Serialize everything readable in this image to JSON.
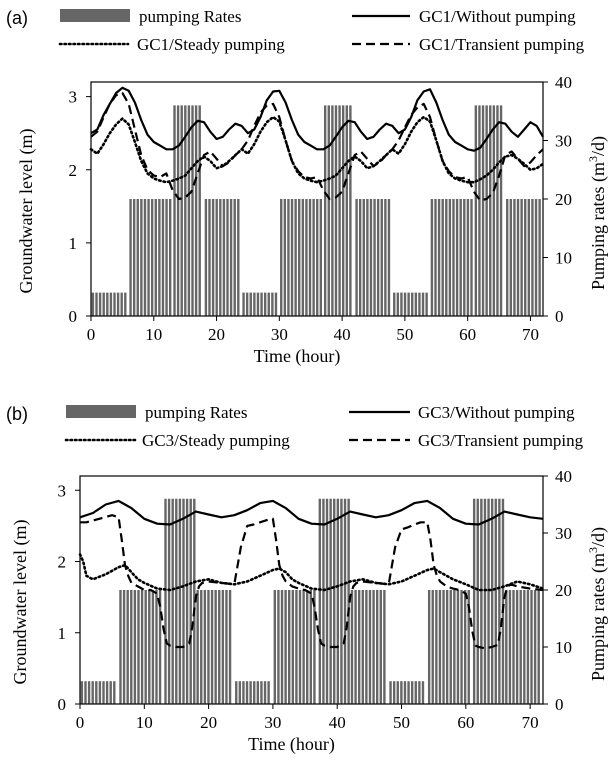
{
  "chart_data": [
    {
      "panel_label": "(a)",
      "type": "bar+line",
      "xlabel": "Time (hour)",
      "ylabel": "Groundwater level (m)",
      "y2label": "Pumping rates (m³/d)",
      "y2label_parts": [
        "Pumping rates (m",
        "3",
        "/d)"
      ],
      "xlim": [
        0,
        72
      ],
      "ylim": [
        0,
        3.2
      ],
      "y2lim": [
        0,
        40
      ],
      "xticks": [
        0,
        10,
        20,
        30,
        40,
        50,
        60,
        70
      ],
      "yticks": [
        0,
        1,
        2,
        3
      ],
      "y2ticks": [
        0,
        10,
        20,
        30,
        40
      ],
      "legend": [
        "pumping Rates",
        "GC1/Without pumping",
        "GC1/Steady pumping",
        "GC1/Transient pumping"
      ],
      "bars": {
        "name": "pumping Rates",
        "segments": [
          {
            "x0": 0,
            "x1": 6,
            "value": 4
          },
          {
            "x0": 6,
            "x1": 13,
            "value": 20
          },
          {
            "x0": 13,
            "x1": 18,
            "value": 36
          },
          {
            "x0": 18,
            "x1": 24,
            "value": 20
          },
          {
            "x0": 24,
            "x1": 30,
            "value": 4
          },
          {
            "x0": 30,
            "x1": 37,
            "value": 20
          },
          {
            "x0": 37,
            "x1": 42,
            "value": 36
          },
          {
            "x0": 42,
            "x1": 48,
            "value": 20
          },
          {
            "x0": 48,
            "x1": 54,
            "value": 4
          },
          {
            "x0": 54,
            "x1": 61,
            "value": 20
          },
          {
            "x0": 61,
            "x1": 66,
            "value": 36
          },
          {
            "x0": 66,
            "x1": 72,
            "value": 20
          }
        ]
      },
      "series": [
        {
          "name": "GC1/Without pumping",
          "style": "solid",
          "x": [
            0,
            1,
            2,
            3,
            4,
            5,
            6,
            7,
            8,
            9,
            10,
            11,
            12,
            13,
            14,
            15,
            16,
            17,
            18,
            19,
            20,
            21,
            22,
            23,
            24,
            25,
            26,
            27,
            28,
            29,
            30,
            31,
            32,
            33,
            34,
            35,
            36,
            37,
            38,
            39,
            40,
            41,
            42,
            43,
            44,
            45,
            46,
            47,
            48,
            49,
            50,
            51,
            52,
            53,
            54,
            55,
            56,
            57,
            58,
            59,
            60,
            61,
            62,
            63,
            64,
            65,
            66,
            67,
            68,
            69,
            70,
            71,
            72
          ],
          "y": [
            2.5,
            2.55,
            2.75,
            2.9,
            3.05,
            3.12,
            3.08,
            2.92,
            2.68,
            2.48,
            2.38,
            2.33,
            2.28,
            2.28,
            2.33,
            2.45,
            2.58,
            2.67,
            2.65,
            2.52,
            2.42,
            2.45,
            2.55,
            2.63,
            2.6,
            2.5,
            2.55,
            2.72,
            2.95,
            3.07,
            3.08,
            2.92,
            2.68,
            2.48,
            2.38,
            2.33,
            2.28,
            2.28,
            2.33,
            2.45,
            2.58,
            2.67,
            2.65,
            2.52,
            2.42,
            2.45,
            2.55,
            2.63,
            2.6,
            2.5,
            2.55,
            2.72,
            2.95,
            3.07,
            3.1,
            2.92,
            2.68,
            2.48,
            2.38,
            2.33,
            2.28,
            2.26,
            2.3,
            2.42,
            2.55,
            2.65,
            2.63,
            2.52,
            2.45,
            2.55,
            2.65,
            2.6,
            2.45
          ]
        },
        {
          "name": "GC1/Steady pumping",
          "style": "dotted",
          "x": [
            0,
            1,
            2,
            3,
            4,
            5,
            6,
            7,
            8,
            9,
            10,
            11,
            12,
            13,
            14,
            15,
            16,
            17,
            18,
            19,
            20,
            21,
            22,
            23,
            24,
            25,
            26,
            27,
            28,
            29,
            30,
            31,
            32,
            33,
            34,
            35,
            36,
            37,
            38,
            39,
            40,
            41,
            42,
            43,
            44,
            45,
            46,
            47,
            48,
            49,
            50,
            51,
            52,
            53,
            54,
            55,
            56,
            57,
            58,
            59,
            60,
            61,
            62,
            63,
            64,
            65,
            66,
            67,
            68,
            69,
            70,
            71,
            72
          ],
          "y": [
            2.28,
            2.22,
            2.35,
            2.5,
            2.62,
            2.7,
            2.62,
            2.38,
            2.12,
            1.95,
            1.88,
            1.85,
            1.83,
            1.85,
            1.88,
            1.92,
            2.02,
            2.12,
            2.18,
            2.12,
            2.02,
            2.05,
            2.12,
            2.2,
            2.28,
            2.22,
            2.35,
            2.52,
            2.65,
            2.72,
            2.66,
            2.4,
            2.12,
            1.95,
            1.88,
            1.85,
            1.83,
            1.85,
            1.88,
            1.92,
            2.02,
            2.12,
            2.18,
            2.12,
            2.02,
            2.05,
            2.12,
            2.2,
            2.28,
            2.22,
            2.35,
            2.52,
            2.65,
            2.72,
            2.66,
            2.4,
            2.12,
            1.95,
            1.88,
            1.85,
            1.83,
            1.83,
            1.87,
            1.92,
            2.0,
            2.1,
            2.18,
            2.2,
            2.15,
            2.08,
            2.0,
            2.02,
            2.08
          ]
        },
        {
          "name": "GC1/Transient pumping",
          "style": "dashed",
          "x": [
            0,
            1,
            2,
            3,
            4,
            5,
            6,
            7,
            8,
            9,
            10,
            11,
            12,
            13,
            14,
            15,
            16,
            17,
            18,
            19,
            20,
            21,
            22,
            23,
            24,
            25,
            26,
            27,
            28,
            29,
            30,
            31,
            32,
            33,
            34,
            35,
            36,
            37,
            38,
            39,
            40,
            41,
            42,
            43,
            44,
            45,
            46,
            47,
            48,
            49,
            50,
            51,
            52,
            53,
            54,
            55,
            56,
            57,
            58,
            59,
            60,
            61,
            62,
            63,
            64,
            65,
            66,
            67,
            68,
            69,
            70,
            71,
            72
          ],
          "y": [
            2.45,
            2.52,
            2.72,
            2.9,
            3.02,
            3.05,
            2.9,
            2.55,
            2.2,
            2.0,
            1.92,
            1.9,
            1.95,
            1.72,
            1.6,
            1.62,
            1.7,
            1.95,
            2.2,
            2.25,
            2.15,
            2.05,
            2.1,
            2.2,
            2.28,
            2.4,
            2.6,
            2.78,
            2.88,
            2.9,
            2.72,
            2.4,
            2.12,
            1.98,
            1.9,
            1.88,
            1.9,
            1.72,
            1.6,
            1.62,
            1.7,
            1.95,
            2.2,
            2.25,
            2.15,
            2.05,
            2.1,
            2.2,
            2.28,
            2.4,
            2.58,
            2.75,
            2.85,
            2.9,
            2.72,
            2.4,
            2.12,
            1.98,
            1.9,
            1.88,
            1.9,
            1.7,
            1.58,
            1.6,
            1.68,
            1.92,
            2.2,
            2.25,
            2.15,
            2.05,
            2.1,
            2.2,
            2.28
          ]
        }
      ]
    },
    {
      "panel_label": "(b)",
      "type": "bar+line",
      "xlabel": "Time (hour)",
      "ylabel": "Groundwater level (m)",
      "y2label": "Pumping rates (m³/d)",
      "y2label_parts": [
        "Pumping rates (m",
        "3",
        "/d)"
      ],
      "xlim": [
        0,
        72
      ],
      "ylim": [
        0,
        3.2
      ],
      "y2lim": [
        0,
        40
      ],
      "xticks": [
        0,
        10,
        20,
        30,
        40,
        50,
        60,
        70
      ],
      "yticks": [
        0,
        1,
        2,
        3
      ],
      "y2ticks": [
        0,
        10,
        20,
        30,
        40
      ],
      "legend": [
        "pumping Rates",
        "GC3/Without pumping",
        "GC3/Steady pumping",
        "GC3/Transient pumping"
      ],
      "bars": {
        "name": "pumping Rates",
        "segments": [
          {
            "x0": 0,
            "x1": 6,
            "value": 4
          },
          {
            "x0": 6,
            "x1": 13,
            "value": 20
          },
          {
            "x0": 13,
            "x1": 18,
            "value": 36
          },
          {
            "x0": 18,
            "x1": 24,
            "value": 20
          },
          {
            "x0": 24,
            "x1": 30,
            "value": 4
          },
          {
            "x0": 30,
            "x1": 37,
            "value": 20
          },
          {
            "x0": 37,
            "x1": 42,
            "value": 36
          },
          {
            "x0": 42,
            "x1": 48,
            "value": 20
          },
          {
            "x0": 48,
            "x1": 54,
            "value": 4
          },
          {
            "x0": 54,
            "x1": 61,
            "value": 20
          },
          {
            "x0": 61,
            "x1": 66,
            "value": 36
          },
          {
            "x0": 66,
            "x1": 72,
            "value": 20
          }
        ]
      },
      "series": [
        {
          "name": "GC3/Without pumping",
          "style": "solid",
          "x": [
            0,
            2,
            4,
            6,
            8,
            10,
            12,
            14,
            16,
            18,
            20,
            22,
            24,
            26,
            28,
            30,
            32,
            34,
            36,
            38,
            40,
            42,
            44,
            46,
            48,
            50,
            52,
            54,
            56,
            58,
            60,
            62,
            64,
            66,
            68,
            70,
            72
          ],
          "y": [
            2.62,
            2.68,
            2.8,
            2.85,
            2.75,
            2.6,
            2.53,
            2.52,
            2.6,
            2.7,
            2.66,
            2.62,
            2.65,
            2.72,
            2.82,
            2.85,
            2.75,
            2.6,
            2.53,
            2.52,
            2.6,
            2.7,
            2.66,
            2.62,
            2.65,
            2.72,
            2.82,
            2.85,
            2.75,
            2.6,
            2.53,
            2.52,
            2.6,
            2.7,
            2.66,
            2.62,
            2.6
          ]
        },
        {
          "name": "GC3/Steady pumping",
          "style": "dotted",
          "x": [
            0,
            0.5,
            1,
            2,
            4,
            6,
            7,
            8,
            9,
            10,
            12,
            14,
            16,
            18,
            20,
            22,
            24,
            26,
            28,
            30,
            31,
            32,
            33,
            34,
            36,
            38,
            40,
            42,
            44,
            46,
            48,
            50,
            52,
            54,
            55,
            56,
            58,
            60,
            62,
            64,
            66,
            68,
            70,
            72
          ],
          "y": [
            2.1,
            2.0,
            1.8,
            1.75,
            1.82,
            1.92,
            1.95,
            1.85,
            1.75,
            1.7,
            1.62,
            1.6,
            1.65,
            1.72,
            1.75,
            1.7,
            1.68,
            1.72,
            1.8,
            1.88,
            1.9,
            1.85,
            1.75,
            1.7,
            1.62,
            1.6,
            1.65,
            1.72,
            1.75,
            1.7,
            1.68,
            1.72,
            1.8,
            1.88,
            1.9,
            1.85,
            1.75,
            1.68,
            1.6,
            1.6,
            1.65,
            1.72,
            1.68,
            1.62
          ]
        },
        {
          "name": "GC3/Transient pumping",
          "style": "dashed",
          "x": [
            0,
            1,
            3,
            5,
            6,
            6.5,
            7,
            7.5,
            8,
            9,
            10,
            11,
            12,
            12.5,
            13,
            13.5,
            14,
            15,
            16,
            17,
            17.5,
            18,
            18.5,
            19,
            20,
            22,
            24,
            25,
            26,
            27,
            28,
            29,
            30,
            30.5,
            31,
            31.5,
            32,
            33,
            34,
            35,
            36,
            36.5,
            37,
            37.5,
            38,
            39,
            40,
            41,
            41.5,
            42,
            42.5,
            43,
            44,
            46,
            48,
            49,
            50,
            51,
            52,
            53,
            54,
            54.5,
            55,
            55.5,
            56,
            57,
            58,
            59,
            60,
            60.5,
            61,
            61.5,
            62,
            63,
            64,
            65,
            65.5,
            66,
            66.5,
            67,
            68,
            70,
            72
          ],
          "y": [
            2.55,
            2.55,
            2.6,
            2.65,
            2.62,
            2.3,
            1.95,
            1.8,
            1.7,
            1.65,
            1.6,
            1.6,
            1.55,
            1.35,
            1.05,
            0.85,
            0.82,
            0.8,
            0.8,
            0.85,
            1.1,
            1.5,
            1.65,
            1.7,
            1.72,
            1.7,
            1.68,
            2.2,
            2.5,
            2.52,
            2.55,
            2.58,
            2.6,
            2.3,
            1.95,
            1.8,
            1.72,
            1.65,
            1.62,
            1.6,
            1.55,
            1.35,
            1.05,
            0.85,
            0.82,
            0.8,
            0.8,
            0.85,
            1.1,
            1.5,
            1.65,
            1.7,
            1.72,
            1.7,
            1.68,
            2.2,
            2.45,
            2.48,
            2.52,
            2.55,
            2.55,
            2.3,
            1.95,
            1.8,
            1.72,
            1.65,
            1.62,
            1.6,
            1.55,
            1.35,
            1.02,
            0.82,
            0.8,
            0.78,
            0.8,
            0.83,
            1.1,
            1.5,
            1.65,
            1.68,
            1.65,
            1.62,
            1.6
          ]
        }
      ]
    }
  ]
}
